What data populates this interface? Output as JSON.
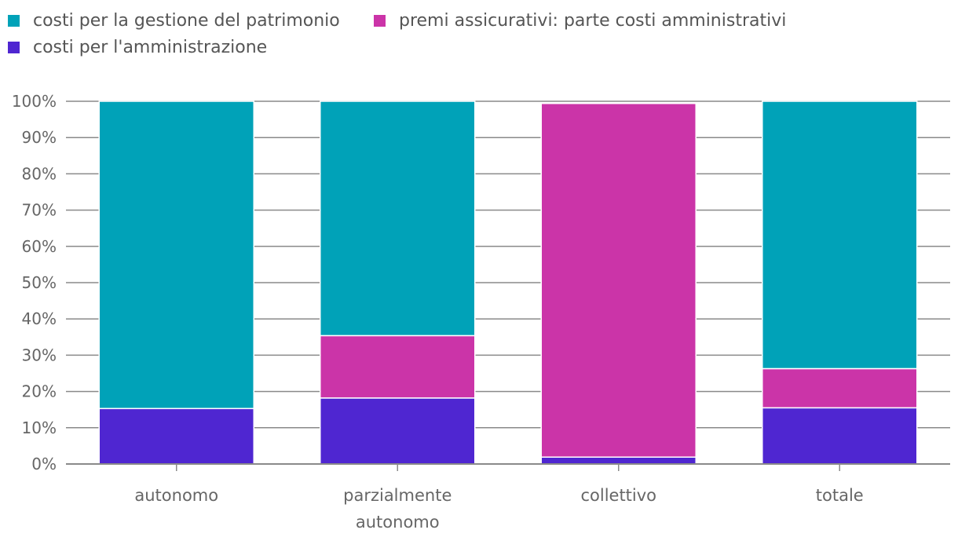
{
  "chart_data": {
    "type": "bar",
    "stacked": true,
    "categories": [
      [
        "autonomo"
      ],
      [
        "parzialmente",
        "autonomo"
      ],
      [
        "collettivo"
      ],
      [
        "totale"
      ]
    ],
    "series": [
      {
        "name": "costi per l'amministrazione",
        "color": "#4F26D1",
        "values": [
          15.3,
          18.2,
          1.9,
          15.5
        ]
      },
      {
        "name": "premi assicurativi: parte costi amministrativi",
        "color": "#CB34A8",
        "values": [
          0,
          17.2,
          97.5,
          10.8
        ]
      },
      {
        "name": "costi per la gestione del patrimonio",
        "color": "#00A2B8",
        "values": [
          84.7,
          64.6,
          0,
          73.7
        ]
      }
    ],
    "yticks": [
      "0%",
      "10%",
      "20%",
      "30%",
      "40%",
      "50%",
      "60%",
      "70%",
      "80%",
      "90%",
      "100%"
    ],
    "ylim": [
      0,
      100
    ],
    "legend_position": "top-left",
    "grid": true
  }
}
